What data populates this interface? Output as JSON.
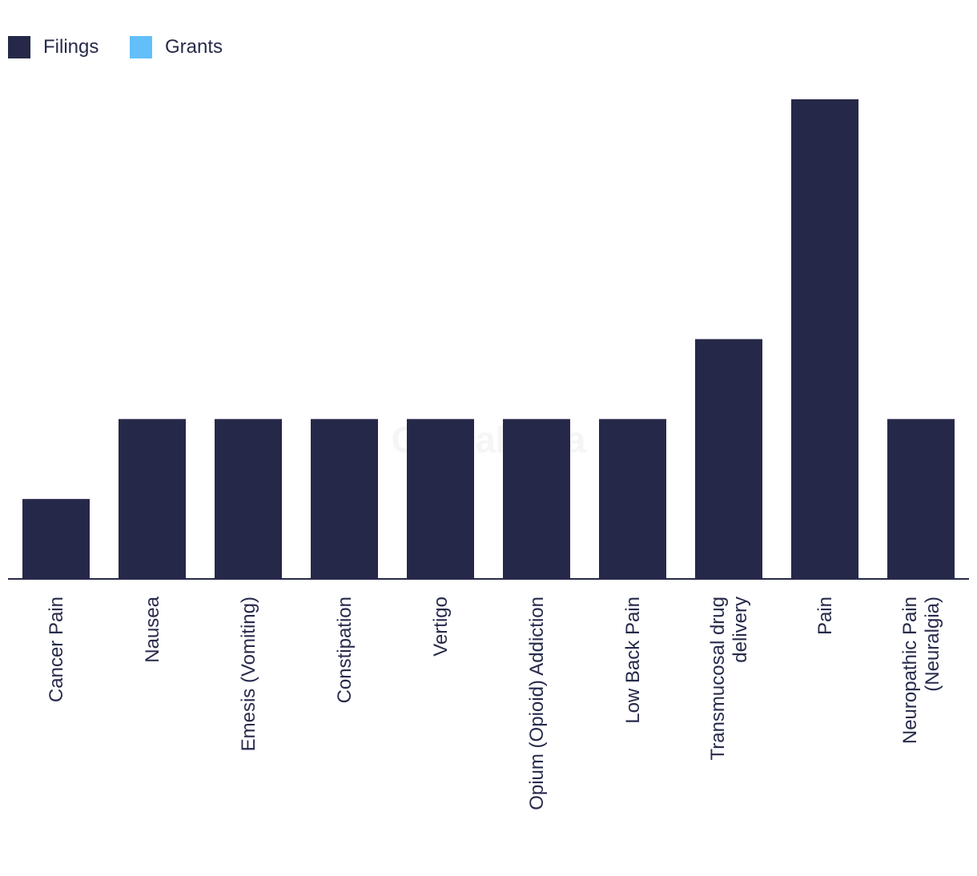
{
  "chart_data": {
    "type": "bar",
    "title": "",
    "xlabel": "",
    "ylabel": "",
    "categories": [
      [
        "Cancer Pain"
      ],
      [
        "Nausea"
      ],
      [
        "Emesis (Vomiting)"
      ],
      [
        "Constipation"
      ],
      [
        "Vertigo"
      ],
      [
        "Opium (Opioid) Addiction"
      ],
      [
        "Low Back Pain"
      ],
      [
        "Transmucosal drug",
        "delivery"
      ],
      [
        "Pain"
      ],
      [
        "Neuropathic Pain",
        "(Neuralgia)"
      ]
    ],
    "series": [
      {
        "name": "Filings",
        "color": "#262849",
        "values": [
          1,
          2,
          2,
          2,
          2,
          2,
          2,
          3,
          6,
          2
        ]
      },
      {
        "name": "Grants",
        "color": "#62bffa",
        "values": [
          0,
          0,
          0,
          0,
          0,
          0,
          0,
          0,
          0,
          0
        ]
      }
    ],
    "ylim": [
      0,
      6
    ],
    "grid": false,
    "legend_position": "top-left"
  },
  "watermark": "GlobalData"
}
